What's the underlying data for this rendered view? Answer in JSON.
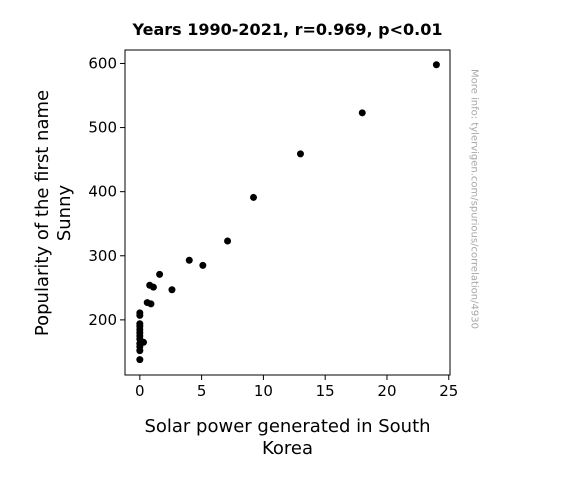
{
  "chart_data": {
    "type": "scatter",
    "title": "Years 1990-2021, r=0.969, p<0.01",
    "xlabel": "Solar power generated in South Korea",
    "ylabel": "Popularity of the first name Sunny",
    "xlim": [
      -1.2,
      25.1
    ],
    "ylim": [
      114,
      621
    ],
    "xticks": [
      0,
      5,
      10,
      15,
      20,
      25
    ],
    "yticks": [
      200,
      300,
      400,
      500,
      600
    ],
    "grid": false,
    "marker_color": "#000000",
    "points": [
      {
        "x": 0.0,
        "y": 138
      },
      {
        "x": 0.0,
        "y": 152
      },
      {
        "x": 0.0,
        "y": 158
      },
      {
        "x": 0.0,
        "y": 163
      },
      {
        "x": 0.0,
        "y": 170
      },
      {
        "x": 0.0,
        "y": 175
      },
      {
        "x": 0.0,
        "y": 180
      },
      {
        "x": 0.0,
        "y": 185
      },
      {
        "x": 0.0,
        "y": 190
      },
      {
        "x": 0.0,
        "y": 194
      },
      {
        "x": 0.0,
        "y": 207
      },
      {
        "x": 0.0,
        "y": 211
      },
      {
        "x": 0.3,
        "y": 165
      },
      {
        "x": 0.6,
        "y": 227
      },
      {
        "x": 0.8,
        "y": 254
      },
      {
        "x": 0.9,
        "y": 225
      },
      {
        "x": 1.1,
        "y": 251
      },
      {
        "x": 1.6,
        "y": 271
      },
      {
        "x": 2.6,
        "y": 247
      },
      {
        "x": 4.0,
        "y": 293
      },
      {
        "x": 5.1,
        "y": 285
      },
      {
        "x": 7.1,
        "y": 323
      },
      {
        "x": 9.2,
        "y": 391
      },
      {
        "x": 13.0,
        "y": 459
      },
      {
        "x": 18.0,
        "y": 523
      },
      {
        "x": 24.0,
        "y": 598
      }
    ]
  },
  "watermark": "More info: tylervigen.com/spurious/correlation/4930"
}
